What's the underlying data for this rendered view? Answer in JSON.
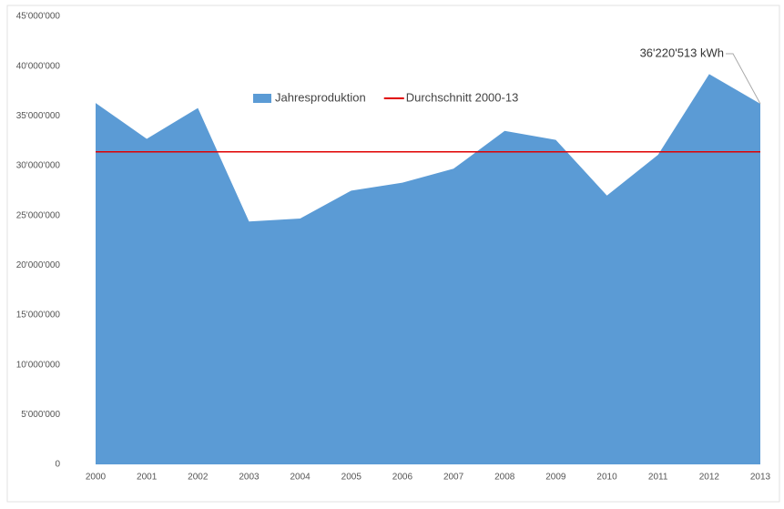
{
  "chart_data": {
    "type": "area",
    "categories": [
      "2000",
      "2001",
      "2002",
      "2003",
      "2004",
      "2005",
      "2006",
      "2007",
      "2008",
      "2009",
      "2010",
      "2011",
      "2012",
      "2013"
    ],
    "series": [
      {
        "name": "Jahresproduktion",
        "type": "area",
        "color": "#5b9bd5",
        "values": [
          36300000,
          32700000,
          35800000,
          24400000,
          24700000,
          27500000,
          28300000,
          29700000,
          33500000,
          32600000,
          27000000,
          31100000,
          39200000,
          36220513
        ],
        "value_labels": [
          null,
          null,
          null,
          null,
          null,
          null,
          null,
          null,
          null,
          null,
          null,
          null,
          null,
          "36'220'513 kWh"
        ]
      },
      {
        "name": "Durchschnitt 2000-13",
        "type": "line",
        "color": "#e00000",
        "values": [
          31400000,
          31400000,
          31400000,
          31400000,
          31400000,
          31400000,
          31400000,
          31400000,
          31400000,
          31400000,
          31400000,
          31400000,
          31400000,
          31400000
        ]
      }
    ],
    "ylim": [
      0,
      45000000
    ],
    "yticks": [
      0,
      {
        "value": 5000000,
        "label": "5'000'000"
      },
      {
        "value": 10000000,
        "label": "10'000'000"
      },
      {
        "value": 15000000,
        "label": "15'000'000"
      },
      {
        "value": 20000000,
        "label": "20'000'000"
      },
      {
        "value": 25000000,
        "label": "25'000'000"
      },
      {
        "value": 30000000,
        "label": "30'000'000"
      },
      {
        "value": 35000000,
        "label": "35'000'000"
      },
      {
        "value": 40000000,
        "label": "40'000'000"
      },
      {
        "value": 45000000,
        "label": "45'000'000"
      }
    ],
    "grid": false,
    "legend": "top"
  }
}
